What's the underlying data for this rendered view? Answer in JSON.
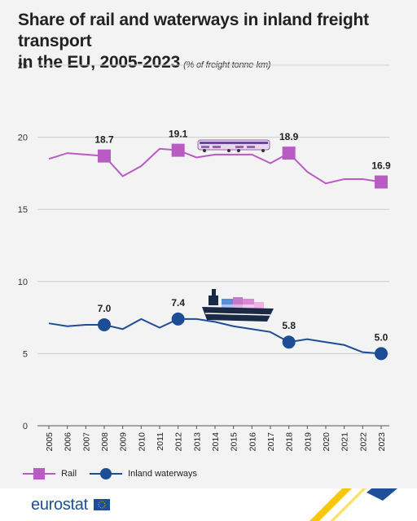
{
  "title_line1": "Share of rail and waterways in inland freight transport",
  "title_line2": "in the EU, 2005-2023",
  "subtitle": "(% of freight tonne-km)",
  "logo_text": "eurostat",
  "colors": {
    "rail": "#b85cc4",
    "waterways": "#1d4e95",
    "grid": "#cccccc",
    "background": "#f3f3f3",
    "yellow": "#f5c400",
    "blue": "#1f4f9b"
  },
  "legend": [
    {
      "label": "Rail",
      "marker": "square"
    },
    {
      "label": "Inland waterways",
      "marker": "circle"
    }
  ],
  "chart_data": {
    "type": "line",
    "x": [
      "2005",
      "2006",
      "2007",
      "2008",
      "2009",
      "2010",
      "2011",
      "2012",
      "2013",
      "2014",
      "2015",
      "2016",
      "2017",
      "2018",
      "2019",
      "2020",
      "2021",
      "2022",
      "2023"
    ],
    "ylim": [
      0,
      25
    ],
    "yticks": [
      0,
      5,
      10,
      15,
      20,
      25
    ],
    "grid": true,
    "legend_position": "bottom-left",
    "series": [
      {
        "name": "Rail",
        "values": [
          18.5,
          18.9,
          18.8,
          18.7,
          17.3,
          18.0,
          19.2,
          19.1,
          18.6,
          18.8,
          18.8,
          18.8,
          18.2,
          18.9,
          17.6,
          16.8,
          17.1,
          17.1,
          16.9
        ],
        "highlighted": [
          {
            "x": "2008",
            "label": "18.7"
          },
          {
            "x": "2012",
            "label": "19.1"
          },
          {
            "x": "2018",
            "label": "18.9"
          },
          {
            "x": "2023",
            "label": "16.9"
          }
        ]
      },
      {
        "name": "Inland waterways",
        "values": [
          7.1,
          6.9,
          7.0,
          7.0,
          6.7,
          7.4,
          6.8,
          7.4,
          7.4,
          7.2,
          6.9,
          6.7,
          6.5,
          5.8,
          6.0,
          5.8,
          5.6,
          5.1,
          5.0
        ],
        "highlighted": [
          {
            "x": "2008",
            "label": "7.0"
          },
          {
            "x": "2012",
            "label": "7.4"
          },
          {
            "x": "2018",
            "label": "5.8"
          },
          {
            "x": "2023",
            "label": "5.0"
          }
        ]
      }
    ]
  }
}
